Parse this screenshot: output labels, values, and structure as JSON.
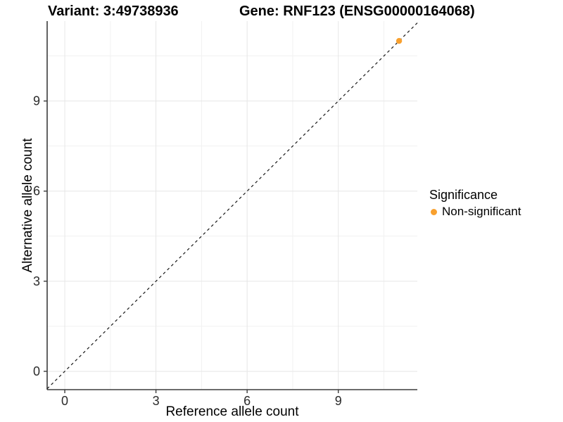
{
  "chart_data": {
    "type": "scatter",
    "title_left": "Variant: 3:49738936",
    "title_right": "Gene: RNF123 (ENSG00000164068)",
    "xlabel": "Reference allele count",
    "ylabel": "Alternative allele count",
    "xlim": [
      -0.58,
      11.6
    ],
    "ylim": [
      -0.61,
      11.66
    ],
    "x_major_ticks": [
      0,
      3,
      6,
      9
    ],
    "y_major_ticks": [
      0,
      3,
      6,
      9
    ],
    "x_minor_gridlines": [
      1.5,
      4.5,
      7.5,
      10.5
    ],
    "y_minor_gridlines": [
      1.5,
      4.5,
      7.5,
      10.5
    ],
    "grid": "major+minor",
    "series": [
      {
        "name": "Non-significant",
        "color": "#F8A02E",
        "points": [
          {
            "x": 11,
            "y": 11
          }
        ]
      }
    ],
    "reference_line": {
      "type": "identity",
      "slope": 1,
      "intercept": 0,
      "linestyle": "dashed",
      "color": "#1a1a1a"
    },
    "legend": {
      "title": "Significance",
      "position": "right",
      "items": [
        {
          "label": "Non-significant",
          "color": "#F8A02E"
        }
      ]
    },
    "colors": {
      "background": "#FFFFFF",
      "grid_major": "#E6E6E6",
      "grid_minor": "#F1F1F1",
      "axis": "#3C3C3C",
      "tick_label": "#2B2B2B",
      "title": "#000000"
    }
  }
}
